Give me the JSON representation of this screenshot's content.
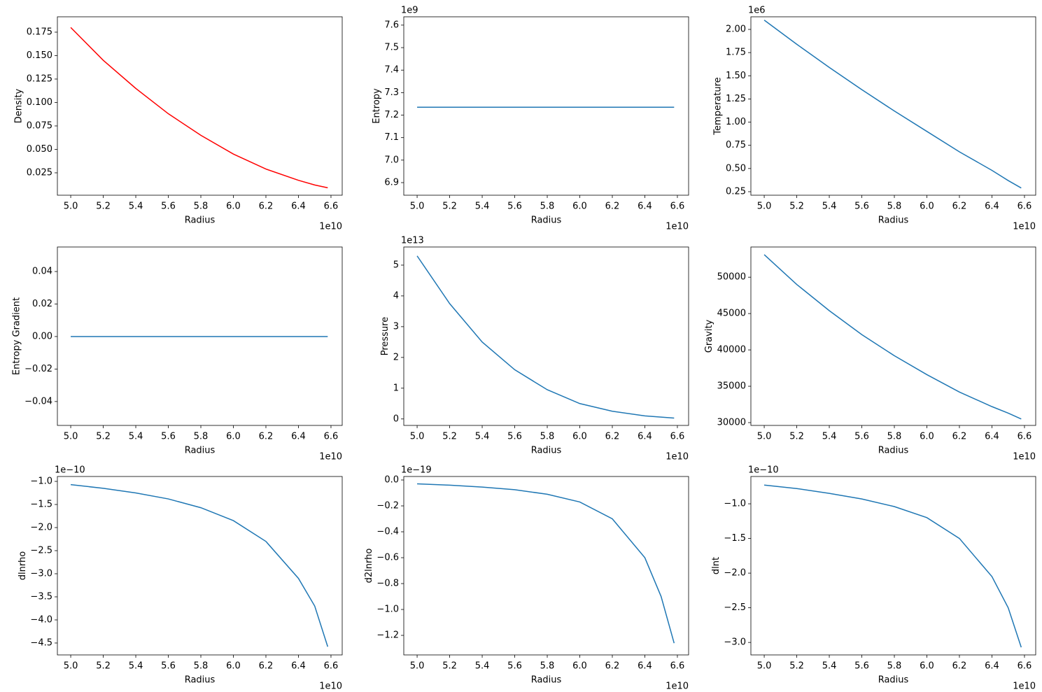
{
  "chart_data": [
    {
      "type": "line",
      "x_label": "Radius",
      "y_label": "Density",
      "color": "#ff0000",
      "x_offset": "1e10",
      "x": [
        5.0,
        5.2,
        5.4,
        5.6,
        5.8,
        6.0,
        6.2,
        6.4,
        6.5,
        6.58
      ],
      "values": [
        0.18,
        0.145,
        0.115,
        0.088,
        0.065,
        0.045,
        0.029,
        0.017,
        0.012,
        0.009
      ],
      "xlim": [
        4.918,
        6.669
      ],
      "ylim": [
        0.0011,
        0.1914
      ],
      "xticks": [
        {
          "value": 5,
          "label": "5.0"
        },
        5.2,
        5.4,
        5.6,
        5.8,
        {
          "value": 6,
          "label": "6.0"
        },
        6.2,
        6.4,
        6.6
      ],
      "yticks": [
        0.025,
        {
          "value": 0.05,
          "label": "0.050"
        },
        0.075,
        {
          "value": 0.1,
          "label": "0.100"
        },
        0.125,
        {
          "value": 0.15,
          "label": "0.150"
        },
        0.175
      ]
    },
    {
      "type": "line",
      "x_label": "Radius",
      "y_label": "Entropy",
      "color": "#1f77b4",
      "x_offset": "1e10",
      "y_offset": "1e9",
      "x": [
        5.0,
        5.2,
        5.4,
        5.6,
        5.8,
        6.0,
        6.2,
        6.4,
        6.5,
        6.58
      ],
      "values": [
        7.235,
        7.235,
        7.235,
        7.235,
        7.235,
        7.235,
        7.235,
        7.235,
        7.235,
        7.235
      ],
      "xlim": [
        4.918,
        6.669
      ],
      "ylim": [
        6.844,
        7.637
      ],
      "xticks": [
        {
          "value": 5,
          "label": "5.0"
        },
        5.2,
        5.4,
        5.6,
        5.8,
        {
          "value": 6,
          "label": "6.0"
        },
        6.2,
        6.4,
        6.6
      ],
      "yticks": [
        6.9,
        {
          "value": 7,
          "label": "7.0"
        },
        7.1,
        7.2,
        7.3,
        7.4,
        7.5,
        7.6
      ]
    },
    {
      "type": "line",
      "x_label": "Radius",
      "y_label": "Temperature",
      "color": "#1f77b4",
      "x_offset": "1e10",
      "y_offset": "1e6",
      "x": [
        5.0,
        5.2,
        5.4,
        5.6,
        5.8,
        6.0,
        6.2,
        6.4,
        6.5,
        6.58
      ],
      "values": [
        2.1,
        1.84,
        1.59,
        1.35,
        1.12,
        0.9,
        0.68,
        0.48,
        0.37,
        0.29
      ],
      "xlim": [
        4.918,
        6.669
      ],
      "ylim": [
        0.212,
        2.136
      ],
      "xticks": [
        {
          "value": 5,
          "label": "5.0"
        },
        5.2,
        5.4,
        5.6,
        5.8,
        {
          "value": 6,
          "label": "6.0"
        },
        6.2,
        6.4,
        6.6
      ],
      "yticks": [
        0.25,
        {
          "value": 0.5,
          "label": "0.50"
        },
        0.75,
        {
          "value": 1,
          "label": "1.00"
        },
        1.25,
        {
          "value": 1.5,
          "label": "1.50"
        },
        1.75,
        {
          "value": 2,
          "label": "2.00"
        }
      ]
    },
    {
      "type": "line",
      "x_label": "Radius",
      "y_label": "Entropy Gradient",
      "color": "#1f77b4",
      "x_offset": "1e10",
      "x": [
        5.0,
        5.2,
        5.4,
        5.6,
        5.8,
        6.0,
        6.2,
        6.4,
        6.5,
        6.58
      ],
      "values": [
        0,
        0,
        0,
        0,
        0,
        0,
        0,
        0,
        0,
        0
      ],
      "xlim": [
        4.918,
        6.669
      ],
      "ylim": [
        -0.0547,
        0.0551
      ],
      "xticks": [
        {
          "value": 5,
          "label": "5.0"
        },
        5.2,
        5.4,
        5.6,
        5.8,
        {
          "value": 6,
          "label": "6.0"
        },
        6.2,
        6.4,
        6.6
      ],
      "yticks": [
        {
          "value": -0.04,
          "label": "−0.04"
        },
        {
          "value": -0.02,
          "label": "−0.02"
        },
        {
          "value": 0,
          "label": "0.00"
        },
        0.02,
        0.04
      ]
    },
    {
      "type": "line",
      "x_label": "Radius",
      "y_label": "Pressure",
      "color": "#1f77b4",
      "x_offset": "1e10",
      "y_offset": "1e13",
      "x": [
        5.0,
        5.2,
        5.4,
        5.6,
        5.8,
        6.0,
        6.2,
        6.4,
        6.5,
        6.58
      ],
      "values": [
        5.3,
        3.75,
        2.5,
        1.6,
        0.95,
        0.5,
        0.25,
        0.1,
        0.06,
        0.03
      ],
      "xlim": [
        4.918,
        6.669
      ],
      "ylim": [
        -0.21,
        5.59
      ],
      "xticks": [
        {
          "value": 5,
          "label": "5.0"
        },
        5.2,
        5.4,
        5.6,
        5.8,
        {
          "value": 6,
          "label": "6.0"
        },
        6.2,
        6.4,
        6.6
      ],
      "yticks": [
        0,
        1,
        2,
        3,
        4,
        5
      ]
    },
    {
      "type": "line",
      "x_label": "Radius",
      "y_label": "Gravity",
      "color": "#1f77b4",
      "x_offset": "1e10",
      "x": [
        5.0,
        5.2,
        5.4,
        5.6,
        5.8,
        6.0,
        6.2,
        6.4,
        6.5,
        6.58
      ],
      "values": [
        53100,
        49000,
        45400,
        42100,
        39200,
        36600,
        34200,
        32200,
        31300,
        30500
      ],
      "xlim": [
        4.918,
        6.669
      ],
      "ylim": [
        29614,
        54155
      ],
      "xticks": [
        {
          "value": 5,
          "label": "5.0"
        },
        5.2,
        5.4,
        5.6,
        5.8,
        {
          "value": 6,
          "label": "6.0"
        },
        6.2,
        6.4,
        6.6
      ],
      "yticks": [
        30000,
        35000,
        40000,
        45000,
        50000
      ]
    },
    {
      "type": "line",
      "x_label": "Radius",
      "y_label": "dlnrho",
      "color": "#1f77b4",
      "x_offset": "1e10",
      "y_offset": "1e−10",
      "x": [
        5.0,
        5.2,
        5.4,
        5.6,
        5.8,
        6.0,
        6.2,
        6.4,
        6.5,
        6.58
      ],
      "values": [
        -1.07,
        -1.15,
        -1.25,
        -1.38,
        -1.57,
        -1.85,
        -2.3,
        -3.1,
        -3.7,
        -4.58
      ],
      "xlim": [
        4.918,
        6.669
      ],
      "ylim": [
        -4.758,
        -0.894
      ],
      "xticks": [
        {
          "value": 5,
          "label": "5.0"
        },
        5.2,
        5.4,
        5.6,
        5.8,
        {
          "value": 6,
          "label": "6.0"
        },
        6.2,
        6.4,
        6.6
      ],
      "yticks": [
        {
          "value": -4.5,
          "label": "−4.5"
        },
        {
          "value": -4,
          "label": "−4.0"
        },
        {
          "value": -3.5,
          "label": "−3.5"
        },
        {
          "value": -3,
          "label": "−3.0"
        },
        {
          "value": -2.5,
          "label": "−2.5"
        },
        {
          "value": -2,
          "label": "−2.0"
        },
        {
          "value": -1.5,
          "label": "−1.5"
        },
        {
          "value": -1,
          "label": "−1.0"
        }
      ]
    },
    {
      "type": "line",
      "x_label": "Radius",
      "y_label": "d2lnrho",
      "color": "#1f77b4",
      "x_offset": "1e10",
      "y_offset": "1e−19",
      "x": [
        5.0,
        5.2,
        5.4,
        5.6,
        5.8,
        6.0,
        6.2,
        6.4,
        6.5,
        6.58
      ],
      "values": [
        -0.03,
        -0.04,
        -0.055,
        -0.075,
        -0.11,
        -0.17,
        -0.3,
        -0.6,
        -0.9,
        -1.26
      ],
      "xlim": [
        4.918,
        6.669
      ],
      "ylim": [
        -1.351,
        0.027
      ],
      "xticks": [
        {
          "value": 5,
          "label": "5.0"
        },
        5.2,
        5.4,
        5.6,
        5.8,
        {
          "value": 6,
          "label": "6.0"
        },
        6.2,
        6.4,
        6.6
      ],
      "yticks": [
        {
          "value": -1.2,
          "label": "−1.2"
        },
        {
          "value": -1,
          "label": "−1.0"
        },
        {
          "value": -0.8,
          "label": "−0.8"
        },
        {
          "value": -0.6,
          "label": "−0.6"
        },
        {
          "value": -0.4,
          "label": "−0.4"
        },
        {
          "value": -0.2,
          "label": "−0.2"
        },
        {
          "value": 0,
          "label": "0.0"
        }
      ]
    },
    {
      "type": "line",
      "x_label": "Radius",
      "y_label": "dlnt",
      "color": "#1f77b4",
      "x_offset": "1e10",
      "y_offset": "1e−10",
      "x": [
        5.0,
        5.2,
        5.4,
        5.6,
        5.8,
        6.0,
        6.2,
        6.4,
        6.5,
        6.58
      ],
      "values": [
        -0.73,
        -0.78,
        -0.85,
        -0.93,
        -1.04,
        -1.2,
        -1.5,
        -2.05,
        -2.5,
        -3.07
      ],
      "xlim": [
        4.918,
        6.669
      ],
      "ylim": [
        -3.18,
        -0.606
      ],
      "xticks": [
        {
          "value": 5,
          "label": "5.0"
        },
        5.2,
        5.4,
        5.6,
        5.8,
        {
          "value": 6,
          "label": "6.0"
        },
        6.2,
        6.4,
        6.6
      ],
      "yticks": [
        {
          "value": -3,
          "label": "−3.0"
        },
        {
          "value": -2.5,
          "label": "−2.5"
        },
        {
          "value": -2,
          "label": "−2.0"
        },
        {
          "value": -1.5,
          "label": "−1.5"
        },
        {
          "value": -1,
          "label": "−1.0"
        }
      ]
    }
  ]
}
